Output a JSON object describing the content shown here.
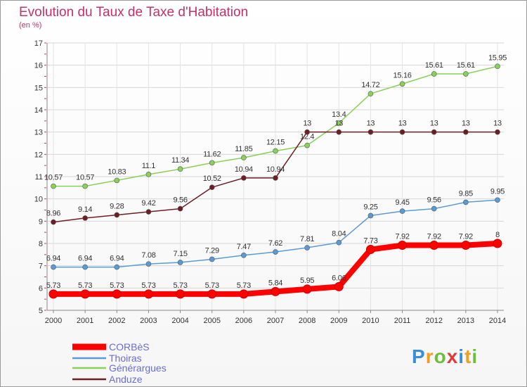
{
  "header": {
    "title": "Evolution du Taux de Taxe d'Habitation",
    "subtitle": "(en %)"
  },
  "logo": {
    "text": "Proxiti"
  },
  "chart_data": {
    "type": "line",
    "title": "Evolution du Taux de Taxe d'Habitation",
    "ylabel": "(en %)",
    "xlabel": "",
    "x": [
      "2000",
      "2001",
      "2002",
      "2003",
      "2004",
      "2005",
      "2006",
      "2007",
      "2008",
      "2009",
      "2010",
      "2011",
      "2012",
      "2013",
      "2014"
    ],
    "ylim": [
      5,
      17
    ],
    "yticks": [
      "5",
      "6",
      "7",
      "8",
      "9",
      "10",
      "11",
      "12",
      "13",
      "14",
      "15",
      "16",
      "17"
    ],
    "grid": true,
    "legend_position": "bottom-left",
    "series": [
      {
        "name": "CORBèS",
        "color": "#ff0000",
        "values": [
          5.73,
          5.73,
          5.73,
          5.73,
          5.73,
          5.73,
          5.73,
          5.84,
          5.95,
          6.06,
          7.73,
          7.92,
          7.92,
          7.92,
          8
        ],
        "labels": [
          "5.73",
          "5.73",
          "5.73",
          "5.73",
          "5.73",
          "5.73",
          "5.73",
          "5.84",
          "5.95",
          "6.06",
          "7.73",
          "7.92",
          "7.92",
          "7.92",
          "8"
        ]
      },
      {
        "name": "Thoiras",
        "color": "#5b9bd5",
        "values": [
          6.94,
          6.94,
          6.94,
          7.08,
          7.15,
          7.29,
          7.47,
          7.62,
          7.81,
          8.04,
          9.25,
          9.45,
          9.56,
          9.85,
          9.95
        ],
        "labels": [
          "6.94",
          "6.94",
          "6.94",
          "7.08",
          "7.15",
          "7.29",
          "7.47",
          "7.62",
          "7.81",
          "8.04",
          "9.25",
          "9.45",
          "9.56",
          "9.85",
          "9.95"
        ]
      },
      {
        "name": "Générargues",
        "color": "#8bd05a",
        "values": [
          10.57,
          10.57,
          10.83,
          11.1,
          11.34,
          11.62,
          11.85,
          12.15,
          12.4,
          13.4,
          14.72,
          15.16,
          15.61,
          15.61,
          15.95
        ],
        "labels": [
          "10.57",
          "10.57",
          "10.83",
          "11.1",
          "11.34",
          "11.62",
          "11.85",
          "12.15",
          "12.4",
          "13.4",
          "14.72",
          "15.16",
          "15.61",
          "15.61",
          "15.95"
        ]
      },
      {
        "name": "Anduze",
        "color": "#6b1f24",
        "values": [
          8.96,
          9.14,
          9.28,
          9.42,
          9.56,
          10.52,
          10.94,
          10.94,
          13,
          13,
          13,
          13,
          13,
          13,
          13
        ],
        "labels": [
          "8.96",
          "9.14",
          "9.28",
          "9.42",
          "9.56",
          "10.52",
          "10.94",
          "10.94",
          "13",
          "13",
          "13",
          "13",
          "13",
          "13",
          "13"
        ]
      }
    ]
  }
}
